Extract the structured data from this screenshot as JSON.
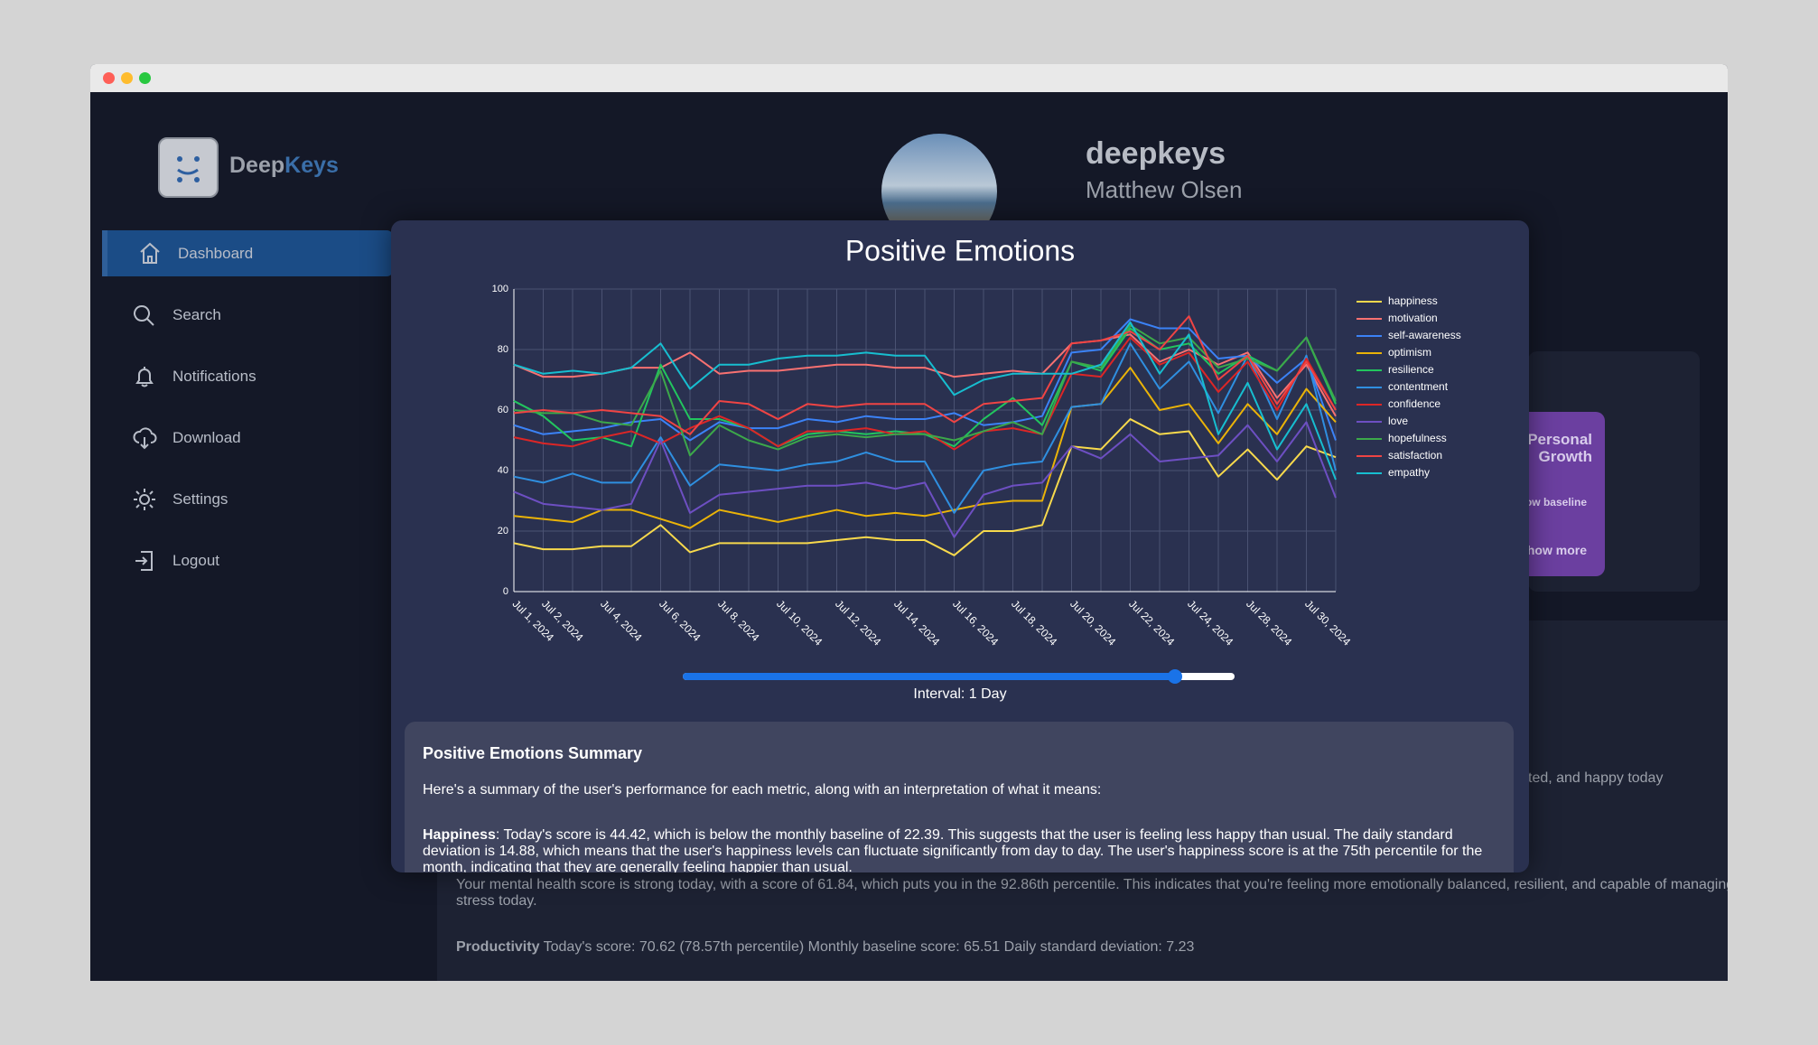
{
  "sidebar": {
    "brand_first": "Deep",
    "brand_second": "Keys",
    "nav": [
      "Dashboard",
      "Search",
      "Notifications",
      "Download",
      "Settings",
      "Logout"
    ]
  },
  "profile": {
    "username": "deepkeys",
    "name": "Matthew Olsen"
  },
  "background": {
    "card_title": "Personal Growth",
    "card_text": "ow baseline",
    "card_link": "how more",
    "fragment": "ted, and happy today",
    "mental_health": "Your mental health score is strong today, with a score of 61.84, which puts you in the 92.86th percentile. This indicates that you're feeling more emotionally balanced, resilient, and capable of managing stress today.",
    "productivity_label": "Productivity",
    "productivity_text": "Today's score: 70.62 (78.57th percentile) Monthly baseline score: 65.51 Daily standard deviation: 7.23"
  },
  "chart_data": {
    "type": "line",
    "title": "Positive Emotions",
    "categories": [
      "Jul 1, 2024",
      "Jul 2, 2024",
      null,
      "Jul 4, 2024",
      null,
      "Jul 6, 2024",
      null,
      "Jul 8, 2024",
      null,
      "Jul 10, 2024",
      null,
      "Jul 12, 2024",
      null,
      "Jul 14, 2024",
      null,
      "Jul 16, 2024",
      null,
      "Jul 18, 2024",
      null,
      "Jul 20, 2024",
      null,
      "Jul 22, 2024",
      null,
      "Jul 24, 2024",
      null,
      "Jul 28, 2024",
      null,
      "Jul 30, 2024",
      null
    ],
    "ylim": [
      0,
      100
    ],
    "yticks": [
      0,
      20,
      40,
      60,
      80,
      100
    ],
    "grid": true,
    "legend": "right",
    "series": [
      {
        "name": "happiness",
        "color": "#f7d94c",
        "values": [
          16,
          14,
          14,
          15,
          15,
          22,
          13,
          16,
          16,
          16,
          16,
          17,
          18,
          17,
          17,
          12,
          20,
          20,
          22,
          48,
          47,
          57,
          52,
          53,
          38,
          47,
          37,
          48,
          44.42
        ]
      },
      {
        "name": "motivation",
        "color": "#f87171",
        "values": [
          75,
          71,
          71,
          72,
          74,
          74,
          79,
          72,
          73,
          73,
          74,
          75,
          75,
          74,
          74,
          71,
          72,
          73,
          72,
          82,
          83,
          85,
          76,
          80,
          75,
          79,
          64,
          75,
          58
        ]
      },
      {
        "name": "self-awareness",
        "color": "#3b82f6",
        "values": [
          55,
          52,
          53,
          54,
          56,
          57,
          50,
          56,
          54,
          54,
          57,
          56,
          58,
          57,
          57,
          59,
          55,
          56,
          58,
          79,
          80,
          90,
          87,
          87,
          77,
          78,
          69,
          77,
          50
        ]
      },
      {
        "name": "optimism",
        "color": "#eab308",
        "values": [
          25,
          24,
          23,
          27,
          27,
          24,
          21,
          27,
          25,
          23,
          25,
          27,
          25,
          26,
          25,
          27,
          29,
          30,
          30,
          61,
          62,
          74,
          60,
          62,
          49,
          62,
          52,
          67,
          56
        ]
      },
      {
        "name": "resilience",
        "color": "#22c55e",
        "values": [
          63,
          58,
          50,
          51,
          48,
          75,
          57,
          57,
          54,
          48,
          52,
          53,
          52,
          53,
          52,
          48,
          57,
          64,
          55,
          76,
          73,
          87,
          80,
          82,
          72,
          78,
          73,
          84,
          62
        ]
      },
      {
        "name": "contentment",
        "color": "#2f8fe0",
        "values": [
          38,
          36,
          39,
          36,
          36,
          51,
          35,
          42,
          41,
          40,
          42,
          43,
          46,
          43,
          43,
          26,
          40,
          42,
          43,
          61,
          62,
          82,
          67,
          76,
          59,
          78,
          57,
          78,
          40
        ]
      },
      {
        "name": "confidence",
        "color": "#dc2626",
        "values": [
          51,
          49,
          48,
          51,
          53,
          49,
          54,
          58,
          54,
          48,
          53,
          53,
          54,
          52,
          53,
          47,
          53,
          54,
          52,
          72,
          71,
          84,
          75,
          79,
          66,
          76,
          60,
          77,
          60
        ]
      },
      {
        "name": "love",
        "color": "#6d4fc2",
        "values": [
          33,
          29,
          28,
          27,
          29,
          50,
          26,
          32,
          33,
          34,
          35,
          35,
          36,
          34,
          36,
          18,
          32,
          35,
          36,
          48,
          44,
          52,
          43,
          44,
          45,
          55,
          43,
          56,
          31
        ]
      },
      {
        "name": "hopefulness",
        "color": "#3ca84a",
        "values": [
          60,
          59,
          59,
          56,
          55,
          73,
          45,
          55,
          50,
          47,
          51,
          52,
          51,
          52,
          52,
          50,
          53,
          56,
          52,
          76,
          74,
          88,
          82,
          84,
          74,
          77,
          73,
          84,
          63
        ]
      },
      {
        "name": "satisfaction",
        "color": "#ef4444",
        "values": [
          59,
          60,
          59,
          60,
          59,
          58,
          52,
          63,
          62,
          57,
          62,
          61,
          62,
          62,
          62,
          56,
          62,
          63,
          64,
          82,
          83,
          86,
          80,
          91,
          70,
          78,
          62,
          76,
          60
        ]
      },
      {
        "name": "empathy",
        "color": "#17bed0",
        "values": [
          75,
          72,
          73,
          72,
          74,
          82,
          67,
          75,
          75,
          77,
          78,
          78,
          79,
          78,
          78,
          65,
          70,
          72,
          72,
          72,
          75,
          89,
          72,
          85,
          52,
          69,
          47,
          62,
          37
        ]
      }
    ]
  },
  "slider_label": "Interval: 1 Day",
  "summary": {
    "title": "Positive Emotions Summary",
    "intro": "Here's a summary of the user's performance for each metric, along with an interpretation of what it means:",
    "items": [
      {
        "label": "Happiness",
        "text": ": Today's score is 44.42, which is below the monthly baseline of 22.39. This suggests that the user is feeling less happy than usual. The daily standard deviation is 14.88, which means that the user's happiness levels can fluctuate significantly from day to day. The user's happiness score is at the 75th percentile for the month, indicating that they are generally feeling happier than usual."
      }
    ]
  }
}
